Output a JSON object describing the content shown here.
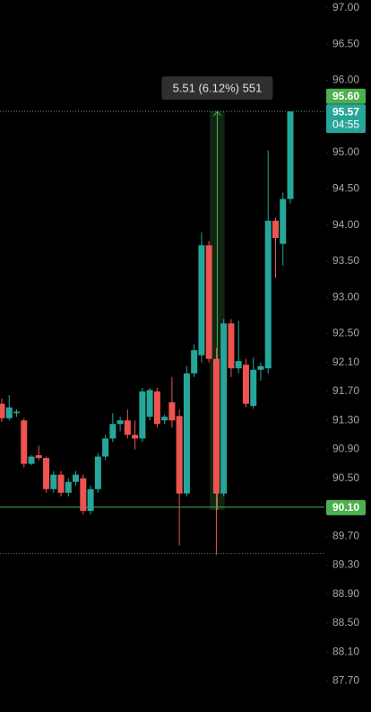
{
  "chart_data": {
    "type": "candlestick",
    "up_color": "#26a69a",
    "down_color": "#ef5350",
    "open": [
      91.53,
      91.33,
      91.4,
      91.3,
      90.7,
      90.82,
      90.78,
      90.35,
      90.55,
      90.3,
      90.45,
      90.5,
      90.05,
      90.35,
      90.8,
      91.05,
      91.25,
      91.3,
      91.1,
      91.05,
      91.35,
      91.7,
      91.3,
      91.55,
      91.36,
      90.29,
      91.95,
      92.2,
      93.72,
      92.15,
      90.29,
      92.64,
      92.02,
      92.07,
      91.5,
      92.0,
      92.02,
      94.06,
      93.74,
      94.36
    ],
    "high": [
      91.6,
      91.65,
      91.45,
      91.33,
      90.82,
      90.95,
      90.8,
      90.6,
      90.6,
      90.5,
      90.6,
      90.55,
      90.4,
      90.85,
      91.1,
      91.4,
      91.35,
      91.45,
      91.3,
      91.75,
      91.75,
      91.75,
      91.38,
      91.9,
      91.45,
      92.05,
      92.35,
      93.9,
      93.78,
      92.3,
      92.7,
      92.7,
      92.68,
      92.15,
      92.17,
      92.1,
      95.03,
      94.1,
      94.45,
      95.57
    ],
    "low": [
      91.28,
      91.3,
      91.35,
      90.65,
      90.68,
      90.75,
      90.3,
      90.3,
      90.25,
      90.25,
      90.4,
      90.0,
      90.0,
      90.3,
      90.75,
      91.0,
      91.15,
      91.05,
      90.9,
      91.0,
      91.3,
      91.2,
      91.25,
      91.2,
      89.57,
      90.25,
      91.9,
      92.1,
      92.1,
      89.44,
      90.25,
      91.9,
      91.95,
      91.48,
      91.46,
      91.85,
      91.95,
      93.27,
      93.44,
      94.3
    ],
    "close": [
      91.33,
      91.48,
      91.42,
      90.7,
      90.8,
      90.78,
      90.35,
      90.55,
      90.3,
      90.45,
      90.55,
      90.05,
      90.35,
      90.8,
      91.05,
      91.25,
      91.3,
      91.1,
      91.05,
      91.7,
      91.72,
      91.25,
      91.35,
      91.3,
      90.29,
      91.95,
      92.27,
      93.72,
      92.15,
      90.29,
      92.64,
      92.02,
      92.12,
      91.53,
      92.0,
      92.05,
      94.06,
      93.82,
      94.36,
      95.57
    ],
    "ylim": [
      87.27,
      97.11
    ],
    "yticks": [
      {
        "value": 97.0,
        "label": "97.00"
      },
      {
        "value": 96.5,
        "label": "96.50"
      },
      {
        "value": 96.0,
        "label": "96.00"
      },
      {
        "value": 95.0,
        "label": "95.00"
      },
      {
        "value": 94.5,
        "label": "94.50"
      },
      {
        "value": 94.0,
        "label": "94.00"
      },
      {
        "value": 93.5,
        "label": "93.50"
      },
      {
        "value": 93.0,
        "label": "93.00"
      },
      {
        "value": 92.5,
        "label": "92.50"
      },
      {
        "value": 92.1,
        "label": "92.10"
      },
      {
        "value": 91.7,
        "label": "91.70"
      },
      {
        "value": 91.3,
        "label": "91.30"
      },
      {
        "value": 90.9,
        "label": "90.90"
      },
      {
        "value": 90.5,
        "label": "90.50"
      },
      {
        "value": 89.7,
        "label": "89.70"
      },
      {
        "value": 89.3,
        "label": "89.30"
      },
      {
        "value": 88.9,
        "label": "88.90"
      },
      {
        "value": 88.5,
        "label": "88.50"
      },
      {
        "value": 88.1,
        "label": "88.10"
      },
      {
        "value": 87.7,
        "label": "87.70"
      }
    ],
    "price_lines": [
      {
        "value": 95.57,
        "color": "#4caf50",
        "style": "dotted"
      },
      {
        "value": 90.1,
        "color": "#4caf50",
        "style": "solid"
      },
      {
        "value": 89.46,
        "color": "#666666",
        "style": "dotted"
      }
    ],
    "price_tags": [
      {
        "value": 95.6,
        "label": "95.60",
        "color": "#4caf50"
      },
      {
        "value": 95.57,
        "label": "95.57",
        "countdown": "04:55",
        "color": "#26a69a"
      },
      {
        "value": 90.1,
        "label": "90.10",
        "color": "#4caf50"
      }
    ],
    "measurement": {
      "start": 90.06,
      "end": 95.57,
      "label": "5.51 (6.12%) 551"
    }
  }
}
